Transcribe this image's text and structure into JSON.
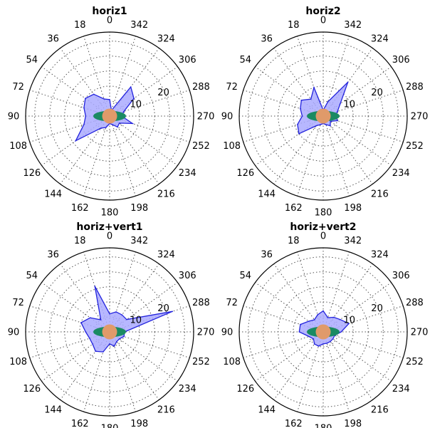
{
  "chart_data": [
    {
      "type": "area",
      "title": "horiz1",
      "theta_ticks": [
        "0",
        "18",
        "36",
        "54",
        "72",
        "90",
        "108",
        "126",
        "144",
        "162",
        "180",
        "198",
        "216",
        "234",
        "252",
        "270",
        "288",
        "306",
        "324",
        "342"
      ],
      "r_ticks": [
        "10",
        "20"
      ],
      "rlim": [
        0,
        28
      ],
      "angles_deg": [
        0,
        18,
        36,
        54,
        72,
        90,
        108,
        126,
        144,
        162,
        180,
        198,
        216,
        234,
        252,
        270,
        288,
        306,
        324,
        342
      ],
      "values": [
        5.5,
        6,
        9,
        10,
        9,
        8,
        9,
        14,
        5,
        4,
        2.5,
        3,
        4.5,
        4,
        8,
        4,
        5,
        10,
        12,
        2
      ],
      "colors": {
        "fill": "#aaaaff",
        "line": "#2222dd",
        "ellipse": "#1a8a62",
        "disk": "#e09a6a"
      }
    },
    {
      "type": "area",
      "title": "horiz2",
      "theta_ticks": [
        "0",
        "18",
        "36",
        "54",
        "72",
        "90",
        "108",
        "126",
        "144",
        "162",
        "180",
        "198",
        "216",
        "234",
        "252",
        "270",
        "288",
        "306",
        "324",
        "342"
      ],
      "r_ticks": [
        "10",
        "20"
      ],
      "rlim": [
        0,
        28
      ],
      "angles_deg": [
        0,
        18,
        36,
        54,
        72,
        90,
        108,
        126,
        144,
        162,
        180,
        198,
        216,
        234,
        252,
        270,
        288,
        306,
        324,
        342
      ],
      "values": [
        2,
        10,
        7,
        9,
        8,
        7,
        9,
        10,
        4,
        3,
        2.5,
        3,
        4,
        3,
        5,
        4,
        5,
        7,
        14,
        5
      ],
      "colors": {
        "fill": "#aaaaff",
        "line": "#2222dd",
        "ellipse": "#1a8a62",
        "disk": "#e09a6a"
      }
    },
    {
      "type": "area",
      "title": "horiz+vert1",
      "theta_ticks": [
        "0",
        "18",
        "36",
        "54",
        "72",
        "90",
        "108",
        "126",
        "144",
        "162",
        "180",
        "198",
        "216",
        "234",
        "252",
        "270",
        "288",
        "306",
        "324",
        "342"
      ],
      "r_ticks": [
        "10",
        "20"
      ],
      "rlim": [
        0,
        28
      ],
      "angles_deg": [
        0,
        18,
        36,
        54,
        72,
        90,
        108,
        126,
        144,
        162,
        180,
        198,
        216,
        234,
        252,
        270,
        288,
        306,
        324,
        342
      ],
      "values": [
        6,
        16,
        5,
        8,
        10,
        8,
        7,
        7,
        8,
        7,
        4,
        5,
        4,
        4,
        5,
        5,
        22,
        7,
        7,
        7
      ],
      "colors": {
        "fill": "#aaaaff",
        "line": "#2222dd",
        "ellipse": "#1a8a62",
        "disk": "#e09a6a"
      }
    },
    {
      "type": "area",
      "title": "horiz+vert2",
      "theta_ticks": [
        "0",
        "18",
        "36",
        "54",
        "72",
        "90",
        "108",
        "126",
        "144",
        "162",
        "180",
        "198",
        "216",
        "234",
        "252",
        "270",
        "288",
        "306",
        "324",
        "342"
      ],
      "r_ticks": [
        "10",
        "20"
      ],
      "rlim": [
        0,
        28
      ],
      "angles_deg": [
        0,
        18,
        36,
        54,
        72,
        90,
        108,
        126,
        144,
        162,
        180,
        198,
        216,
        234,
        252,
        270,
        288,
        306,
        324,
        342
      ],
      "values": [
        7,
        6,
        5,
        6,
        8,
        8,
        5,
        4,
        5,
        5,
        4,
        4,
        4,
        4,
        4,
        6,
        9,
        7,
        6,
        5
      ],
      "colors": {
        "fill": "#aaaaff",
        "line": "#2222dd",
        "ellipse": "#1a8a62",
        "disk": "#e09a6a"
      }
    }
  ]
}
